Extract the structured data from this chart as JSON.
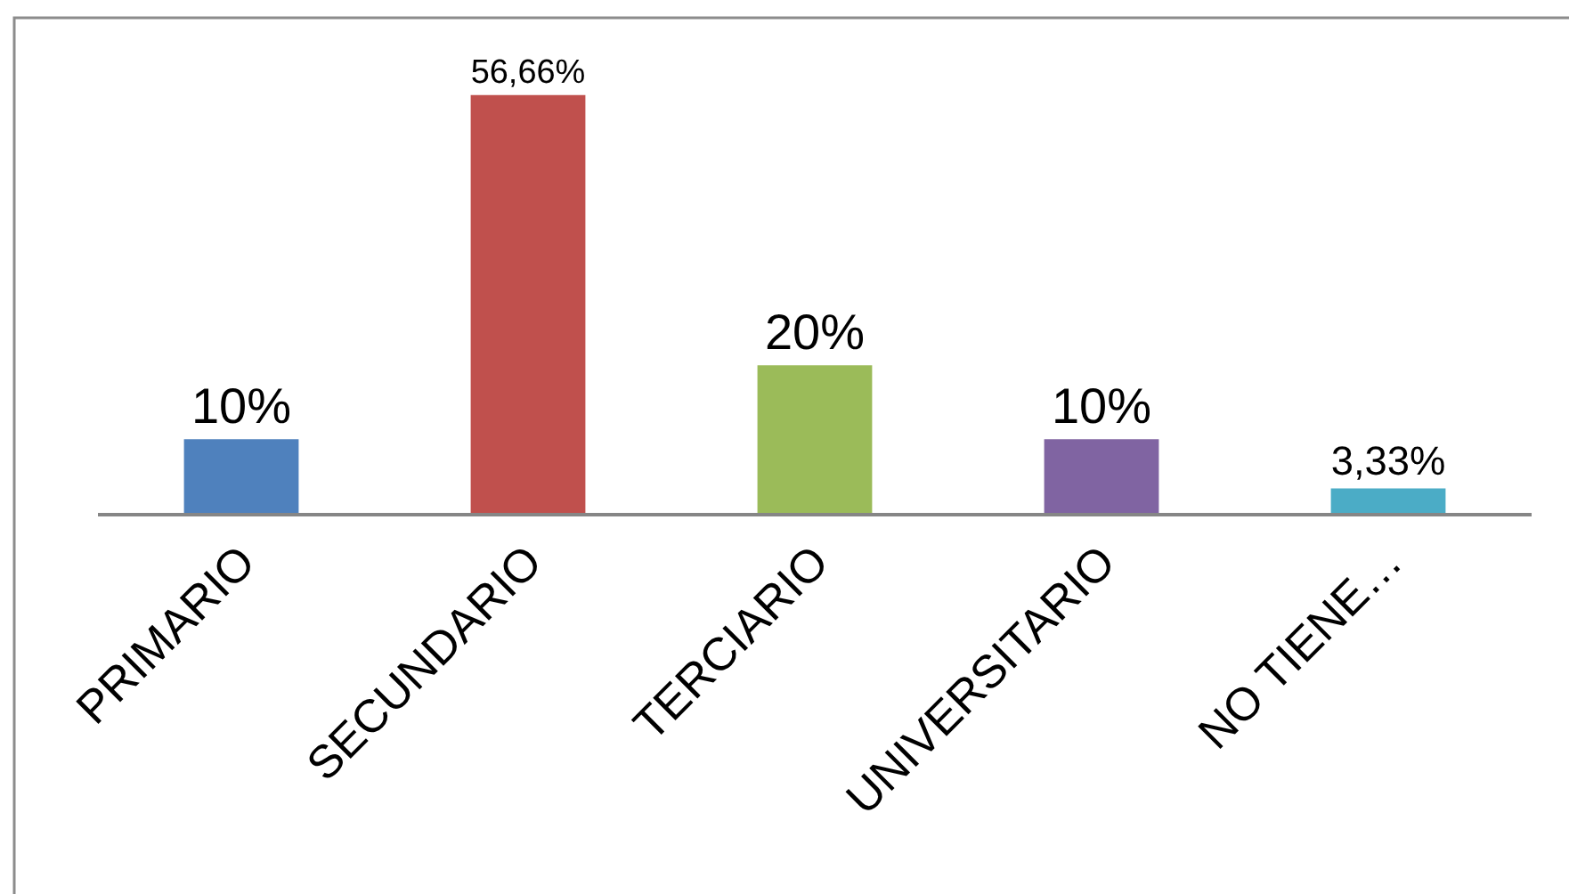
{
  "chart_data": {
    "type": "bar",
    "categories": [
      "PRIMARIO",
      "SECUNDARIO",
      "TERCIARIO",
      "UNIVERSITARIO",
      "NO TIENE…"
    ],
    "values": [
      10,
      56.66,
      20,
      10,
      3.33
    ],
    "colors": [
      "#4f81bd",
      "#c0504d",
      "#9bbb59",
      "#8064a2",
      "#4bacc6"
    ],
    "value_labels": [
      "10%",
      "56,66%",
      "20%",
      "10%",
      "3,33%"
    ]
  }
}
